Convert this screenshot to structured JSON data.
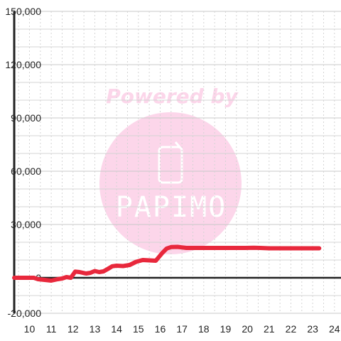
{
  "chart_data": {
    "type": "line",
    "title": "",
    "xlabel": "",
    "ylabel": "",
    "xlim": [
      9.3,
      24.3
    ],
    "ylim": [
      -20000,
      150000
    ],
    "x_ticks": [
      10,
      11,
      12,
      13,
      14,
      15,
      16,
      17,
      18,
      19,
      20,
      21,
      22,
      23,
      24
    ],
    "y_ticks": [
      -20000,
      0,
      30000,
      60000,
      90000,
      120000,
      150000
    ],
    "y_tick_labels": [
      "-20,000",
      "0",
      "30,000",
      "60,000",
      "90,000",
      "120,000",
      "150,000"
    ],
    "grid": true,
    "legend": "none",
    "series": [
      {
        "color": "#e8283c",
        "x": [
          9.3,
          10.2,
          10.4,
          10.7,
          11.0,
          11.3,
          11.5,
          11.7,
          11.9,
          12.1,
          12.3,
          12.6,
          12.8,
          13.0,
          13.2,
          13.4,
          13.6,
          13.8,
          14.0,
          14.3,
          14.6,
          14.9,
          15.2,
          15.5,
          15.8,
          16.1,
          16.3,
          16.5,
          16.8,
          17.2,
          18.0,
          19.0,
          19.5,
          19.9,
          20.3,
          20.6,
          21.0,
          22.0,
          23.0,
          23.3
        ],
        "y": [
          0,
          0,
          -800,
          -1200,
          -1600,
          -800,
          -400,
          400,
          0,
          3500,
          3200,
          2400,
          2800,
          3800,
          3200,
          3600,
          5000,
          6500,
          6800,
          6600,
          7200,
          9000,
          10000,
          9800,
          9600,
          14000,
          16500,
          17300,
          17400,
          16800,
          16800,
          16800,
          16800,
          16800,
          16900,
          16800,
          16600,
          16600,
          16600,
          16600
        ]
      }
    ]
  },
  "watermark": {
    "text": "Powered by",
    "brand": "PAPIMO",
    "circle_color": "#fcd6ea",
    "text_color": "#fcd6ea"
  },
  "colors": {
    "axis": "#222222",
    "grid_major": "#c8c8c8",
    "grid_minor": "#d4d4d4",
    "line": "#e8283c"
  }
}
